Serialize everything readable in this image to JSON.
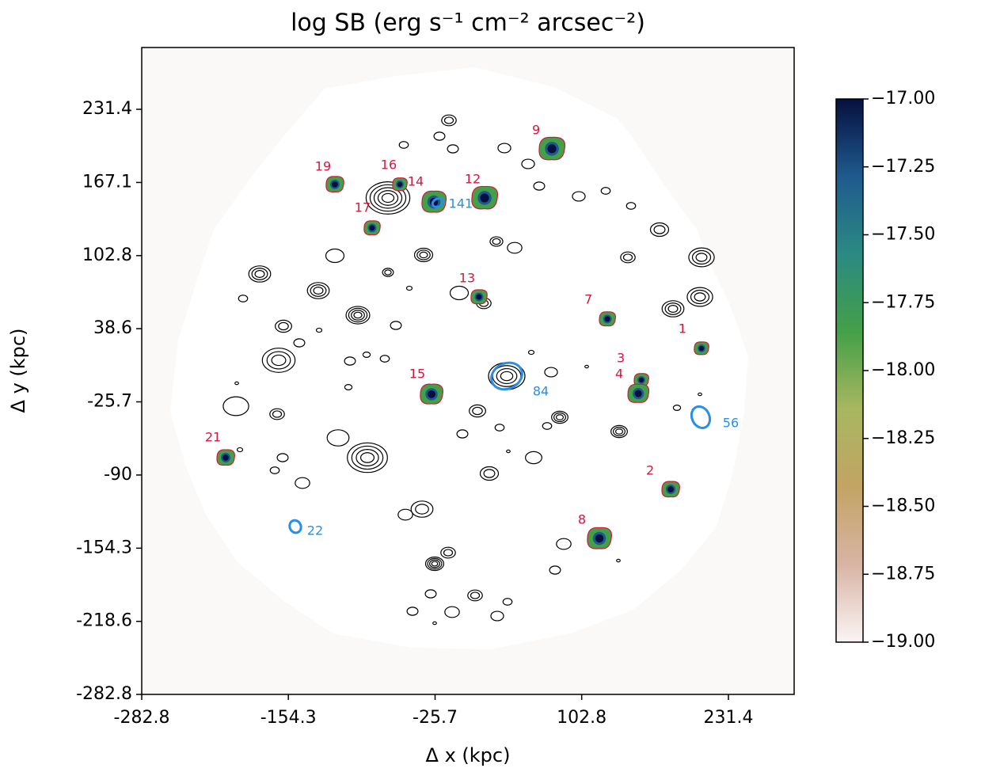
{
  "chart_data": {
    "type": "image-map",
    "title": "log SB (erg s⁻¹ cm⁻² arcsec⁻²)",
    "x_label": "Δ x (kpc)",
    "y_label": "Δ y (kpc)",
    "xlim": [
      -282.8,
      289.0
    ],
    "ylim": [
      -282.8,
      285.7
    ],
    "xticks": [
      -282.8,
      -154.3,
      -25.7,
      102.8,
      231.4
    ],
    "yticks": [
      -282.8,
      -218.6,
      -154.3,
      -90.0,
      -25.7,
      38.6,
      102.8,
      167.1,
      231.4
    ],
    "sources": [
      {
        "label": "9",
        "x": 76.7,
        "y": 196.7
      },
      {
        "label": "19",
        "x": -113.5,
        "y": 165.4
      },
      {
        "label": "16",
        "x": -56.6,
        "y": 165.4
      },
      {
        "label": "14",
        "x": -26.7,
        "y": 150.0
      },
      {
        "label": "12",
        "x": 17.7,
        "y": 153.5
      },
      {
        "label": "17",
        "x": -80.9,
        "y": 127.1
      },
      {
        "label": "13",
        "x": 12.8,
        "y": 66.5
      },
      {
        "label": "7",
        "x": 125.3,
        "y": 47.1
      },
      {
        "label": "1",
        "x": 207.8,
        "y": 21.3
      },
      {
        "label": "3",
        "x": 155.1,
        "y": -6.5
      },
      {
        "label": "4",
        "x": 152.4,
        "y": -18.4
      },
      {
        "label": "15",
        "x": -28.8,
        "y": -19.0
      },
      {
        "label": "21",
        "x": -209.2,
        "y": -74.7
      },
      {
        "label": "2",
        "x": 180.8,
        "y": -102.6
      },
      {
        "label": "8",
        "x": 118.3,
        "y": -145.7
      }
    ],
    "source_color": "#d6173c",
    "apertures": [
      {
        "label": "141",
        "x": -23.3,
        "y": 149.3
      },
      {
        "label": "84",
        "x": 37.1,
        "y": -3.0
      },
      {
        "label": "56",
        "x": 207.1,
        "y": -39.2
      },
      {
        "label": "22",
        "x": -148.2,
        "y": -135.3
      }
    ],
    "aperture_color": "#2a8de6",
    "colorbar": {
      "lim": [
        -19.0,
        -17.0
      ],
      "colors": [
        "#fbf4f4",
        "#d8b4a4",
        "#c2a464",
        "#a8b760",
        "#44a048",
        "#2b8a82",
        "#1f5a8e",
        "#06103f"
      ],
      "ticks": [
        {
          "value": -17.0,
          "label": "−17.00"
        },
        {
          "value": -17.25,
          "label": "−17.25"
        },
        {
          "value": -17.5,
          "label": "−17.50"
        },
        {
          "value": -17.75,
          "label": "−17.75"
        },
        {
          "value": -18.0,
          "label": "−18.00"
        },
        {
          "value": -18.25,
          "label": "−18.25"
        },
        {
          "value": -18.5,
          "label": "−18.50"
        },
        {
          "value": -18.75,
          "label": "−18.75"
        },
        {
          "value": -19.0,
          "label": "−19.00"
        }
      ]
    }
  }
}
